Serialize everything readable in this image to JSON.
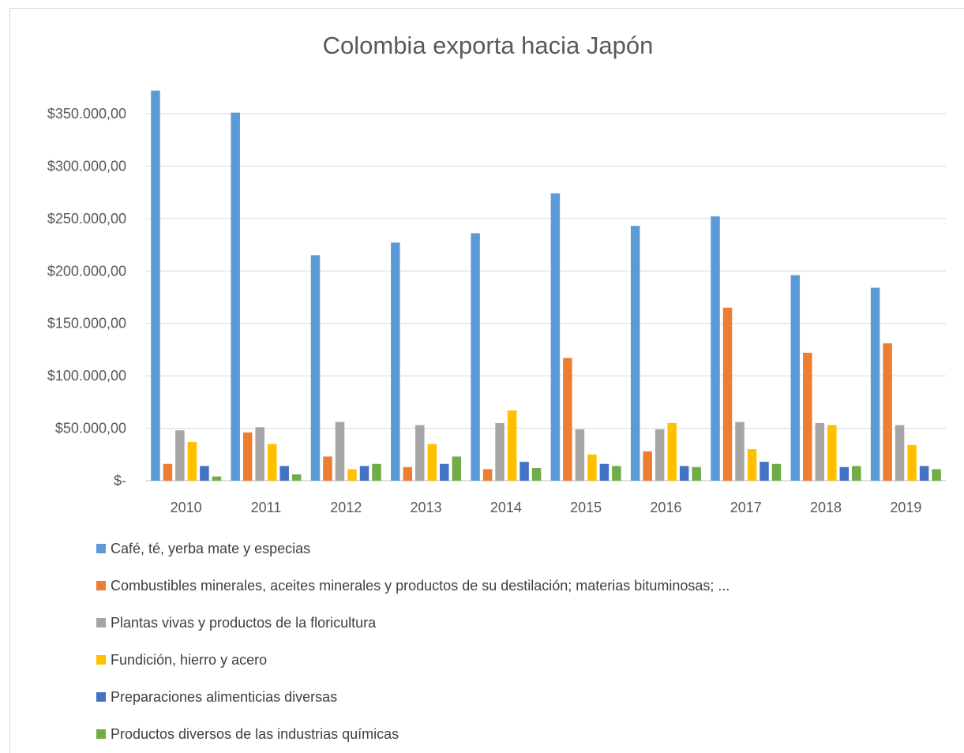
{
  "chart_data": {
    "type": "bar",
    "title": "Colombia exporta hacia Japón",
    "xlabel": "",
    "ylabel": "",
    "categories": [
      "2010",
      "2011",
      "2012",
      "2013",
      "2014",
      "2015",
      "2016",
      "2017",
      "2018",
      "2019"
    ],
    "ylim": [
      0,
      350000
    ],
    "yticks": [
      0,
      50000,
      100000,
      150000,
      200000,
      250000,
      300000,
      350000
    ],
    "ytick_labels": [
      "$-",
      "$50.000,00",
      "$100.000,00",
      "$150.000,00",
      "$200.000,00",
      "$250.000,00",
      "$300.000,00",
      "$350.000,00"
    ],
    "grid": true,
    "legend_position": "bottom",
    "series": [
      {
        "name": "Café, té, yerba mate y especias",
        "color": "#5b9bd5",
        "values": [
          372000,
          351000,
          215000,
          227000,
          236000,
          274000,
          243000,
          252000,
          196000,
          184000
        ]
      },
      {
        "name": "Combustibles minerales, aceites minerales y productos de su destilación; materias bituminosas; ...",
        "color": "#ed7d31",
        "values": [
          16000,
          46000,
          23000,
          13000,
          11000,
          117000,
          28000,
          165000,
          122000,
          131000
        ]
      },
      {
        "name": "Plantas vivas y productos de la floricultura",
        "color": "#a5a5a5",
        "values": [
          48000,
          51000,
          56000,
          53000,
          55000,
          49000,
          49000,
          56000,
          55000,
          53000
        ]
      },
      {
        "name": "Fundición, hierro y acero",
        "color": "#ffc000",
        "values": [
          37000,
          35000,
          11000,
          35000,
          67000,
          25000,
          55000,
          30000,
          53000,
          34000
        ]
      },
      {
        "name": "Preparaciones alimenticias diversas",
        "color": "#4472c4",
        "values": [
          14000,
          14000,
          14000,
          16000,
          18000,
          16000,
          14000,
          18000,
          13000,
          14000
        ]
      },
      {
        "name": "Productos diversos de las industrias químicas",
        "color": "#70ad47",
        "values": [
          4000,
          6000,
          16000,
          23000,
          12000,
          14000,
          13000,
          16000,
          14000,
          11000
        ]
      }
    ]
  }
}
